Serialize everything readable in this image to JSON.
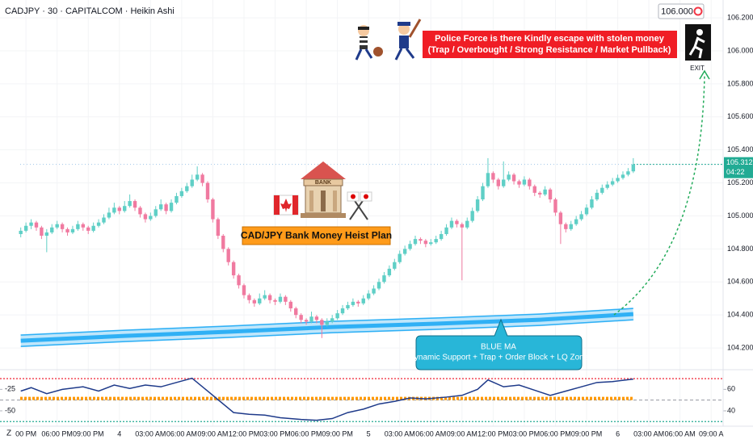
{
  "chart_data": [
    {
      "type": "candlestick",
      "title": "CADJPY · 30 · CAPITALCOM · Heikin Ashi",
      "up_color": "#5fcfc6",
      "down_color": "#f07aa0",
      "candles": [
        [
          104.89,
          104.93,
          104.87,
          104.91
        ],
        [
          104.91,
          104.96,
          104.9,
          104.94
        ],
        [
          104.94,
          104.98,
          104.92,
          104.96
        ],
        [
          104.96,
          104.97,
          104.91,
          104.93
        ],
        [
          104.93,
          104.94,
          104.86,
          104.88
        ],
        [
          104.88,
          104.92,
          104.78,
          104.9
        ],
        [
          104.9,
          104.95,
          104.89,
          104.93
        ],
        [
          104.93,
          104.97,
          104.92,
          104.95
        ],
        [
          104.95,
          104.96,
          104.9,
          104.92
        ],
        [
          104.92,
          104.93,
          104.88,
          104.9
        ],
        [
          104.9,
          104.94,
          104.89,
          104.92
        ],
        [
          104.92,
          104.97,
          104.91,
          104.95
        ],
        [
          104.95,
          104.96,
          104.91,
          104.93
        ],
        [
          104.93,
          104.94,
          104.89,
          104.91
        ],
        [
          104.91,
          104.96,
          104.9,
          104.94
        ],
        [
          104.94,
          104.98,
          104.93,
          104.96
        ],
        [
          104.96,
          105.01,
          104.95,
          104.99
        ],
        [
          104.99,
          105.05,
          104.98,
          105.02
        ],
        [
          105.02,
          105.08,
          105.01,
          105.05
        ],
        [
          105.05,
          105.06,
          105.01,
          105.03
        ],
        [
          105.03,
          105.09,
          105.02,
          105.06
        ],
        [
          105.06,
          105.13,
          105.05,
          105.09
        ],
        [
          105.09,
          105.1,
          105.03,
          105.05
        ],
        [
          105.05,
          105.06,
          104.99,
          105.01
        ],
        [
          105.01,
          105.02,
          104.96,
          104.98
        ],
        [
          104.98,
          105.02,
          104.97,
          105.0
        ],
        [
          105.0,
          105.06,
          104.99,
          105.04
        ],
        [
          105.04,
          105.1,
          105.03,
          105.07
        ],
        [
          105.07,
          105.08,
          105.01,
          105.03
        ],
        [
          105.03,
          105.1,
          105.02,
          105.08
        ],
        [
          105.08,
          105.14,
          105.07,
          105.12
        ],
        [
          105.12,
          105.17,
          105.11,
          105.15
        ],
        [
          105.15,
          105.2,
          105.14,
          105.18
        ],
        [
          105.18,
          105.25,
          105.17,
          105.22
        ],
        [
          105.22,
          105.3,
          105.21,
          105.25
        ],
        [
          105.25,
          105.26,
          105.18,
          105.2
        ],
        [
          105.2,
          105.21,
          105.08,
          105.1
        ],
        [
          105.1,
          105.11,
          104.96,
          104.98
        ],
        [
          104.98,
          104.99,
          104.86,
          104.88
        ],
        [
          104.88,
          104.89,
          104.78,
          104.8
        ],
        [
          104.8,
          104.81,
          104.7,
          104.72
        ],
        [
          104.72,
          104.73,
          104.62,
          104.64
        ],
        [
          104.64,
          104.65,
          104.56,
          104.58
        ],
        [
          104.58,
          104.59,
          104.5,
          104.52
        ],
        [
          104.52,
          104.53,
          104.47,
          104.49
        ],
        [
          104.49,
          104.5,
          104.45,
          104.47
        ],
        [
          104.47,
          104.53,
          104.46,
          104.5
        ],
        [
          104.5,
          104.55,
          104.49,
          104.52
        ],
        [
          104.52,
          104.53,
          104.47,
          104.49
        ],
        [
          104.49,
          104.5,
          104.46,
          104.48
        ],
        [
          104.48,
          104.53,
          104.47,
          104.51
        ],
        [
          104.51,
          104.52,
          104.46,
          104.48
        ],
        [
          104.48,
          104.49,
          104.42,
          104.44
        ],
        [
          104.44,
          104.45,
          104.38,
          104.4
        ],
        [
          104.4,
          104.41,
          104.35,
          104.37
        ],
        [
          104.37,
          104.38,
          104.34,
          104.36
        ],
        [
          104.36,
          104.42,
          104.35,
          104.39
        ],
        [
          104.39,
          104.4,
          104.35,
          104.37
        ],
        [
          104.37,
          104.38,
          104.26,
          104.34
        ],
        [
          104.34,
          104.38,
          104.33,
          104.36
        ],
        [
          104.36,
          104.4,
          104.35,
          104.38
        ],
        [
          104.38,
          104.43,
          104.37,
          104.41
        ],
        [
          104.41,
          104.46,
          104.4,
          104.44
        ],
        [
          104.44,
          104.48,
          104.43,
          104.46
        ],
        [
          104.46,
          104.5,
          104.45,
          104.48
        ],
        [
          104.48,
          104.49,
          104.45,
          104.47
        ],
        [
          104.47,
          104.52,
          104.46,
          104.5
        ],
        [
          104.5,
          104.55,
          104.49,
          104.53
        ],
        [
          104.53,
          104.58,
          104.52,
          104.56
        ],
        [
          104.56,
          104.62,
          104.55,
          104.6
        ],
        [
          104.6,
          104.66,
          104.59,
          104.64
        ],
        [
          104.64,
          104.7,
          104.63,
          104.68
        ],
        [
          104.68,
          104.74,
          104.67,
          104.72
        ],
        [
          104.72,
          104.79,
          104.71,
          104.77
        ],
        [
          104.77,
          104.82,
          104.76,
          104.8
        ],
        [
          104.8,
          104.85,
          104.79,
          104.83
        ],
        [
          104.83,
          104.88,
          104.82,
          104.86
        ],
        [
          104.86,
          104.87,
          104.83,
          104.85
        ],
        [
          104.85,
          104.86,
          104.81,
          104.83
        ],
        [
          104.83,
          104.86,
          104.82,
          104.84
        ],
        [
          104.84,
          104.88,
          104.83,
          104.86
        ],
        [
          104.86,
          104.91,
          104.85,
          104.89
        ],
        [
          104.89,
          104.95,
          104.88,
          104.93
        ],
        [
          104.93,
          104.99,
          104.92,
          104.97
        ],
        [
          104.97,
          104.98,
          104.93,
          104.95
        ],
        [
          104.95,
          104.96,
          104.61,
          104.93
        ],
        [
          104.93,
          104.99,
          104.92,
          104.97
        ],
        [
          104.97,
          105.05,
          104.96,
          105.03
        ],
        [
          105.03,
          105.12,
          105.02,
          105.1
        ],
        [
          105.1,
          105.2,
          105.09,
          105.18
        ],
        [
          105.18,
          105.35,
          105.17,
          105.26
        ],
        [
          105.26,
          105.27,
          105.2,
          105.22
        ],
        [
          105.22,
          105.23,
          105.16,
          105.18
        ],
        [
          105.18,
          105.33,
          105.17,
          105.22
        ],
        [
          105.22,
          105.27,
          105.21,
          105.25
        ],
        [
          105.25,
          105.26,
          105.19,
          105.21
        ],
        [
          105.21,
          105.22,
          105.17,
          105.19
        ],
        [
          105.19,
          105.24,
          105.18,
          105.22
        ],
        [
          105.22,
          105.23,
          105.16,
          105.18
        ],
        [
          105.18,
          105.19,
          105.12,
          105.14
        ],
        [
          105.14,
          105.15,
          105.11,
          105.13
        ],
        [
          105.13,
          105.18,
          105.12,
          105.16
        ],
        [
          105.16,
          105.17,
          105.08,
          105.1
        ],
        [
          105.1,
          105.11,
          105.0,
          105.02
        ],
        [
          105.02,
          105.03,
          104.83,
          104.95
        ],
        [
          104.95,
          104.96,
          104.9,
          104.92
        ],
        [
          104.92,
          104.97,
          104.91,
          104.95
        ],
        [
          104.95,
          105.0,
          104.94,
          104.98
        ],
        [
          104.98,
          105.03,
          104.97,
          105.01
        ],
        [
          105.01,
          105.07,
          105.0,
          105.05
        ],
        [
          105.05,
          105.12,
          105.04,
          105.1
        ],
        [
          105.1,
          105.16,
          105.09,
          105.14
        ],
        [
          105.14,
          105.19,
          105.13,
          105.17
        ],
        [
          105.17,
          105.21,
          105.16,
          105.19
        ],
        [
          105.19,
          105.23,
          105.18,
          105.21
        ],
        [
          105.21,
          105.25,
          105.2,
          105.23
        ],
        [
          105.23,
          105.27,
          105.22,
          105.25
        ],
        [
          105.25,
          105.29,
          105.24,
          105.27
        ],
        [
          105.27,
          105.35,
          105.26,
          105.312
        ]
      ],
      "ma": {
        "color": "#2fb0f5",
        "x": [
          0,
          20,
          40,
          60,
          80,
          100,
          118
        ],
        "values": [
          104.244,
          104.273,
          104.298,
          104.327,
          104.347,
          104.371,
          104.405
        ]
      },
      "xlim": [
        -4,
        135.3
      ],
      "ylim": [
        104.083,
        106.308
      ],
      "yticks": [
        {
          "value": 104.2,
          "label": "104.200"
        },
        {
          "value": 104.4,
          "label": "104.400"
        },
        {
          "value": 104.6,
          "label": "104.600"
        },
        {
          "value": 104.8,
          "label": "104.800"
        },
        {
          "value": 105,
          "label": "105.000"
        },
        {
          "value": 105.2,
          "label": "105.200"
        },
        {
          "value": 105.4,
          "label": "105.400"
        },
        {
          "value": 105.6,
          "label": "105.600"
        },
        {
          "value": 105.8,
          "label": "105.800"
        },
        {
          "value": 106,
          "label": "106.000"
        },
        {
          "value": 106.2,
          "label": "106.200"
        }
      ],
      "xticks": [
        {
          "value": 1,
          "label": "00 PM"
        },
        {
          "value": 7,
          "label": "06:00 PM"
        },
        {
          "value": 13,
          "label": "09:00 PM"
        },
        {
          "value": 19,
          "label": "4"
        },
        {
          "value": 25,
          "label": "03:00 AM"
        },
        {
          "value": 31,
          "label": "06:00 AM"
        },
        {
          "value": 37,
          "label": "09:00 AM"
        },
        {
          "value": 43,
          "label": "12:00 PM"
        },
        {
          "value": 49,
          "label": "03:00 PM"
        },
        {
          "value": 55,
          "label": "06:00 PM"
        },
        {
          "value": 61,
          "label": "09:00 PM"
        },
        {
          "value": 67,
          "label": "5"
        },
        {
          "value": 73,
          "label": "03:00 AM"
        },
        {
          "value": 79,
          "label": "06:00 AM"
        },
        {
          "value": 85,
          "label": "09:00 AM"
        },
        {
          "value": 91,
          "label": "12:00 PM"
        },
        {
          "value": 97,
          "label": "03:00 PM"
        },
        {
          "value": 103,
          "label": "06:00 PM"
        },
        {
          "value": 109,
          "label": "09:00 PM"
        },
        {
          "value": 115,
          "label": "6"
        },
        {
          "value": 121,
          "label": "03:00 AM"
        },
        {
          "value": 127,
          "label": "06:00 AM"
        },
        {
          "value": 133,
          "label": "09:00 A"
        }
      ],
      "last_price": 105.312,
      "countdown": "04:22",
      "alert": {
        "value": 106,
        "label": "106.000"
      },
      "notes": {
        "escape": [
          "Police Force is there Kindly escape with stolen money",
          "(Trap / Overbought / Strong Resistance / Market Pullback)"
        ],
        "exit": "EXIT",
        "plan": "CAD/JPY Bank Money Heist Plan",
        "bank": "BANK",
        "ma_note": [
          "BLUE MA",
          "Dynamic Support + Trap + Order Block + LQ Zone"
        ]
      }
    },
    {
      "type": "line",
      "pane_label": "Z",
      "color": "#1e3a8a",
      "x": [
        0,
        2,
        5,
        8,
        12,
        15,
        18,
        21,
        24,
        27,
        30,
        33,
        36,
        38,
        41,
        44,
        47,
        50,
        54,
        57,
        60,
        63,
        66,
        69,
        72,
        75,
        78,
        82,
        85,
        88,
        90,
        93,
        96,
        99,
        102,
        105,
        108,
        111,
        114,
        118
      ],
      "values": [
        58.4,
        61.6,
        56,
        60,
        62.4,
        58.4,
        64,
        60.8,
        64,
        62.4,
        66.4,
        70.4,
        58.4,
        50.4,
        38.4,
        36.8,
        36,
        33.6,
        32,
        31.2,
        32.8,
        38.4,
        41.6,
        46.4,
        48.8,
        52,
        51.2,
        52.8,
        54.4,
        60,
        68.8,
        62.4,
        64,
        59.2,
        54.4,
        58.4,
        62.4,
        66.4,
        67.2,
        69.6
      ],
      "levels": [
        {
          "value": 70,
          "color": "#f23645"
        },
        {
          "value": 50,
          "color": "#ff9800"
        },
        {
          "value": 30,
          "color": "#22ab94"
        }
      ],
      "ylim": [
        27.2,
        76.8
      ],
      "yticks": [
        40,
        60
      ],
      "y2lim": [
        -66,
        -4
      ],
      "y2ticks": [
        -50,
        -25
      ]
    }
  ]
}
